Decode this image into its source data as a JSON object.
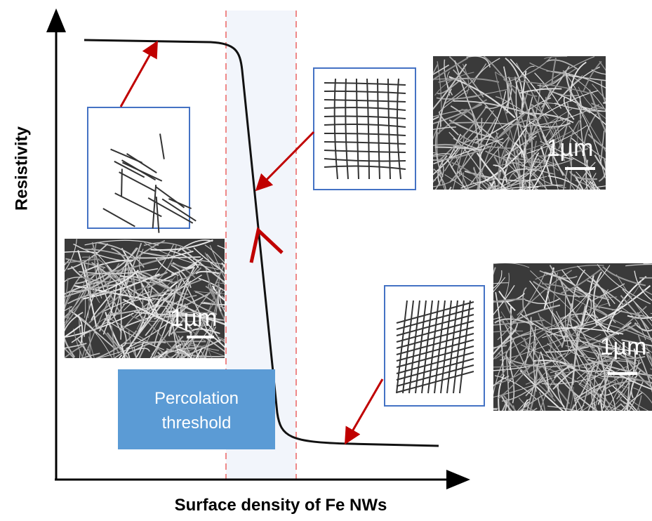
{
  "axes": {
    "y_label": "Resistivity",
    "x_label": "Surface density of Fe NWs"
  },
  "annotation": {
    "lines": [
      "Percolation",
      "threshold"
    ]
  },
  "micrographs": [
    {
      "scale_label": "1µm"
    },
    {
      "scale_label": "1µm"
    },
    {
      "scale_label": "1µm"
    }
  ]
}
